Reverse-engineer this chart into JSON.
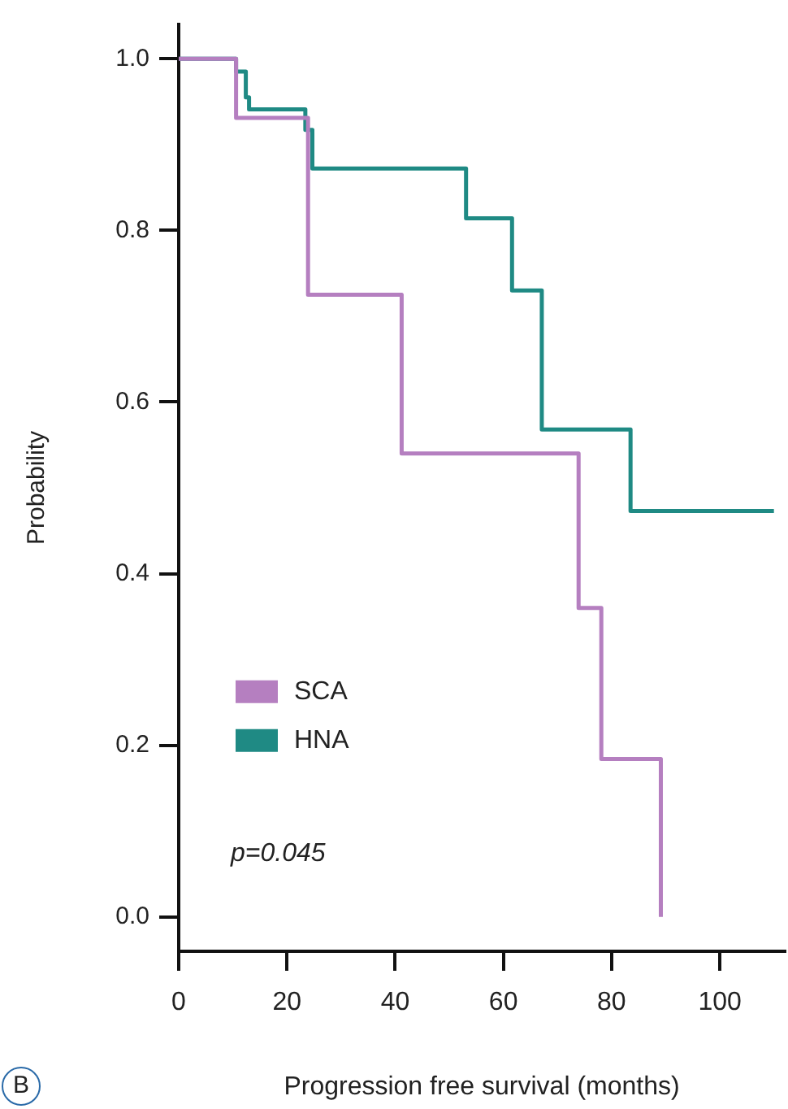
{
  "chart_data": {
    "type": "step",
    "xlabel": "Progression free survival (months)",
    "ylabel": "Probability",
    "xlim": [
      0,
      112
    ],
    "xticks": [
      0,
      20,
      40,
      60,
      80,
      100
    ],
    "ylim": [
      -0.04,
      1.04
    ],
    "yticks": [
      {
        "value": 0,
        "label": "0.0"
      },
      {
        "value": 0.2,
        "label": "0.2"
      },
      {
        "value": 0.4,
        "label": "0.4"
      },
      {
        "value": 0.6,
        "label": "0.6"
      },
      {
        "value": 0.8,
        "label": "0.8"
      },
      {
        "value": 1,
        "label": "1.0"
      }
    ],
    "grid": false,
    "legend": "bottom left",
    "marker": "none",
    "line_style": "solid",
    "series": [
      {
        "name": "SCA",
        "color": "#b57fc0",
        "x": [
          0,
          10.6,
          23.9,
          41.2,
          73.9,
          78.1,
          89.1
        ],
        "values": [
          1,
          0.931,
          0.725,
          0.54,
          0.36,
          0.184,
          0
        ]
      },
      {
        "name": "HNA",
        "color": "#1f8a84",
        "x": [
          0,
          10.6,
          12.4,
          13,
          23.4,
          24.7,
          53.1,
          61.6,
          67.1,
          83.5,
          110
        ],
        "values": [
          1,
          0.985,
          0.955,
          0.941,
          0.917,
          0.872,
          0.814,
          0.73,
          0.568,
          0.473,
          0.473
        ]
      }
    ],
    "annotations": [
      "p=0.045",
      "B"
    ]
  }
}
